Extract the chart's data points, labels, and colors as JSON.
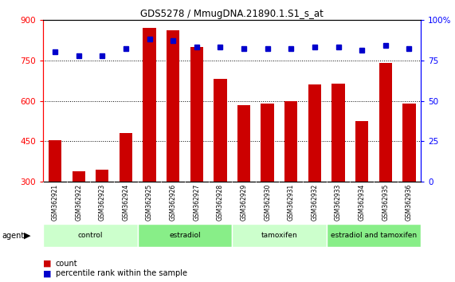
{
  "title": "GDS5278 / MmugDNA.21890.1.S1_s_at",
  "samples": [
    "GSM362921",
    "GSM362922",
    "GSM362923",
    "GSM362924",
    "GSM362925",
    "GSM362926",
    "GSM362927",
    "GSM362928",
    "GSM362929",
    "GSM362930",
    "GSM362931",
    "GSM362932",
    "GSM362933",
    "GSM362934",
    "GSM362935",
    "GSM362936"
  ],
  "counts": [
    453,
    340,
    345,
    480,
    870,
    860,
    800,
    680,
    585,
    590,
    600,
    660,
    665,
    525,
    740,
    590
  ],
  "percentiles": [
    80,
    78,
    78,
    82,
    88,
    87,
    83,
    83,
    82,
    82,
    82,
    83,
    83,
    81,
    84,
    82
  ],
  "groups": [
    {
      "label": "control",
      "start": 0,
      "end": 3,
      "color": "#ccffcc"
    },
    {
      "label": "estradiol",
      "start": 4,
      "end": 7,
      "color": "#88ee88"
    },
    {
      "label": "tamoxifen",
      "start": 8,
      "end": 11,
      "color": "#ccffcc"
    },
    {
      "label": "estradiol and tamoxifen",
      "start": 12,
      "end": 15,
      "color": "#88ee88"
    }
  ],
  "bar_color": "#cc0000",
  "dot_color": "#0000cc",
  "ylim_left": [
    300,
    900
  ],
  "ylim_right": [
    0,
    100
  ],
  "yticks_left": [
    300,
    450,
    600,
    750,
    900
  ],
  "yticks_right": [
    0,
    25,
    50,
    75,
    100
  ],
  "bg_plot": "#ffffff",
  "bg_xaxis": "#c8c8c8"
}
